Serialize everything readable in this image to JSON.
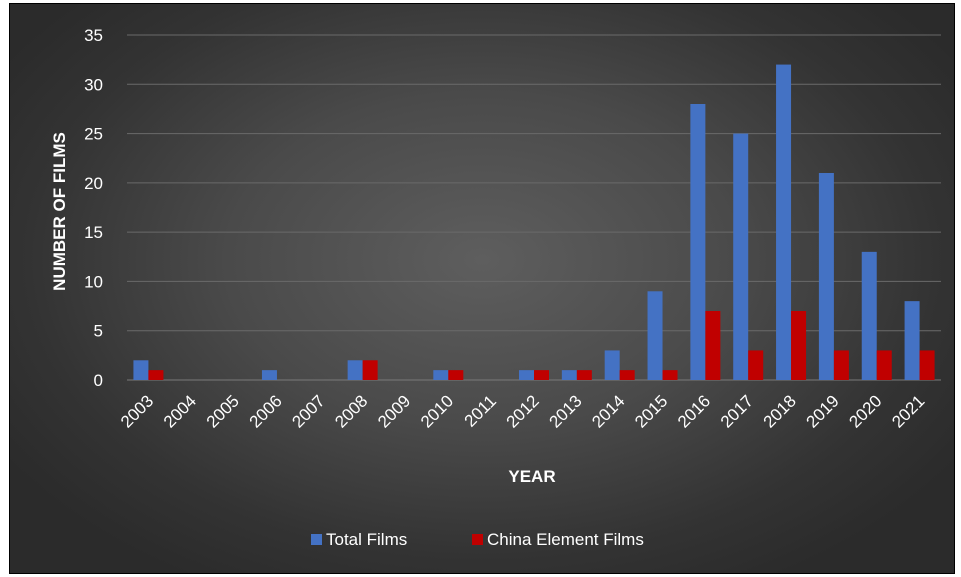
{
  "chart_data": {
    "type": "bar",
    "title": "",
    "xlabel": "YEAR",
    "ylabel": "NUMBER OF FILMS",
    "categories": [
      "2003",
      "2004",
      "2005",
      "2006",
      "2007",
      "2008",
      "2009",
      "2010",
      "2011",
      "2012",
      "2013",
      "2014",
      "2015",
      "2016",
      "2017",
      "2018",
      "2019",
      "2020",
      "2021"
    ],
    "series": [
      {
        "name": "Total Films",
        "color": "#4472c4",
        "values": [
          2,
          0,
          0,
          1,
          0,
          2,
          0,
          1,
          0,
          1,
          1,
          3,
          9,
          28,
          25,
          32,
          21,
          13,
          8
        ]
      },
      {
        "name": "China Element Films",
        "color": "#c00000",
        "values": [
          1,
          0,
          0,
          0,
          0,
          2,
          0,
          1,
          0,
          1,
          1,
          1,
          1,
          7,
          3,
          7,
          3,
          3,
          3
        ]
      }
    ],
    "ylim": [
      0,
      35
    ],
    "yticks": [
      0,
      5,
      10,
      15,
      20,
      25,
      30,
      35
    ],
    "grid": true,
    "legend_position": "bottom"
  }
}
